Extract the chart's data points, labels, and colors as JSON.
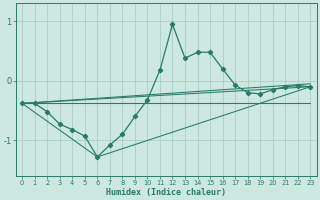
{
  "title": "",
  "xlabel": "Humidex (Indice chaleur)",
  "bg_color": "#cce8e0",
  "line_color": "#2a7a6a",
  "grid_color": "#aacec6",
  "xlim": [
    -0.5,
    23.5
  ],
  "ylim": [
    -1.6,
    1.3
  ],
  "yticks": [
    -1,
    0,
    1
  ],
  "xticks": [
    0,
    1,
    2,
    3,
    4,
    5,
    6,
    7,
    8,
    9,
    10,
    11,
    12,
    13,
    14,
    15,
    16,
    17,
    18,
    19,
    20,
    21,
    22,
    23
  ],
  "series": [
    [
      0,
      -0.38
    ],
    [
      1,
      -0.38
    ],
    [
      2,
      -0.52
    ],
    [
      3,
      -0.73
    ],
    [
      4,
      -0.82
    ],
    [
      5,
      -0.93
    ],
    [
      6,
      -1.28
    ],
    [
      7,
      -1.08
    ],
    [
      8,
      -0.9
    ],
    [
      9,
      -0.6
    ],
    [
      10,
      -0.32
    ],
    [
      11,
      0.18
    ],
    [
      12,
      0.95
    ],
    [
      13,
      0.38
    ],
    [
      14,
      0.48
    ],
    [
      15,
      0.48
    ],
    [
      16,
      0.2
    ],
    [
      17,
      -0.07
    ],
    [
      18,
      -0.2
    ],
    [
      19,
      -0.22
    ],
    [
      20,
      -0.15
    ],
    [
      21,
      -0.1
    ],
    [
      22,
      -0.08
    ],
    [
      23,
      -0.1
    ]
  ],
  "line_flat": [
    [
      0,
      -0.38
    ],
    [
      1,
      -0.38
    ],
    [
      23,
      -0.38
    ]
  ],
  "line_upper": [
    [
      0,
      -0.38
    ],
    [
      23,
      -0.05
    ]
  ],
  "line_mid": [
    [
      0,
      -0.38
    ],
    [
      23,
      -0.1
    ]
  ],
  "line_lower": [
    [
      0,
      -0.38
    ],
    [
      6,
      -1.28
    ],
    [
      23,
      -0.1
    ]
  ]
}
